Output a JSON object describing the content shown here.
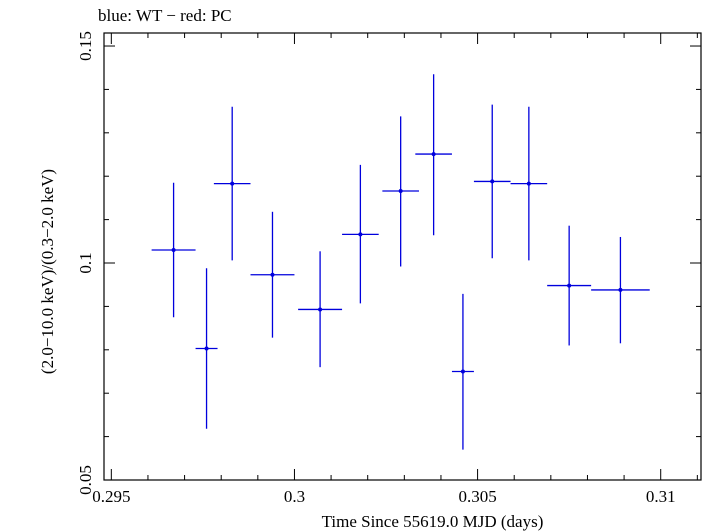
{
  "chart_data": {
    "type": "scatter",
    "title": "blue: WT − red: PC",
    "xlabel": "Time Since 55619.0 MJD (days)",
    "ylabel": "(2.0−10.0 keV)/(0.3−2.0 keV)",
    "xlim": [
      0.2948,
      0.3111
    ],
    "ylim": [
      0.05,
      0.153
    ],
    "x_ticks": [
      {
        "value": 0.295,
        "label": "0.295"
      },
      {
        "value": 0.3,
        "label": "0.3"
      },
      {
        "value": 0.305,
        "label": "0.305"
      },
      {
        "value": 0.31,
        "label": "0.31"
      }
    ],
    "y_ticks": [
      {
        "value": 0.05,
        "label": "0.05"
      },
      {
        "value": 0.1,
        "label": "0.1"
      },
      {
        "value": 0.15,
        "label": "0.15"
      }
    ],
    "grid": false,
    "series": [
      {
        "name": "WT",
        "color": "#0000dd",
        "points": [
          {
            "x": 0.2967,
            "y": 0.103,
            "xerr": 0.0006,
            "ylo": 0.0875,
            "yhi": 0.1185
          },
          {
            "x": 0.2976,
            "y": 0.0803,
            "xerr": 0.0003,
            "ylo": 0.0618,
            "yhi": 0.0988
          },
          {
            "x": 0.2983,
            "y": 0.1183,
            "xerr": 0.0005,
            "ylo": 0.1006,
            "yhi": 0.136
          },
          {
            "x": 0.2994,
            "y": 0.0973,
            "xerr": 0.0006,
            "ylo": 0.0828,
            "yhi": 0.1118
          },
          {
            "x": 0.3007,
            "y": 0.0893,
            "xerr": 0.0006,
            "ylo": 0.076,
            "yhi": 0.1027
          },
          {
            "x": 0.3018,
            "y": 0.1066,
            "xerr": 0.0005,
            "ylo": 0.0907,
            "yhi": 0.1226
          },
          {
            "x": 0.3029,
            "y": 0.1166,
            "xerr": 0.0005,
            "ylo": 0.0992,
            "yhi": 0.1338
          },
          {
            "x": 0.3038,
            "y": 0.1251,
            "xerr": 0.0005,
            "ylo": 0.1064,
            "yhi": 0.1435
          },
          {
            "x": 0.3046,
            "y": 0.075,
            "xerr": 0.0003,
            "ylo": 0.057,
            "yhi": 0.0929
          },
          {
            "x": 0.3054,
            "y": 0.1188,
            "xerr": 0.0005,
            "ylo": 0.1011,
            "yhi": 0.1365
          },
          {
            "x": 0.3064,
            "y": 0.1183,
            "xerr": 0.0005,
            "ylo": 0.1006,
            "yhi": 0.136
          },
          {
            "x": 0.3075,
            "y": 0.0948,
            "xerr": 0.0006,
            "ylo": 0.081,
            "yhi": 0.1086
          },
          {
            "x": 0.3089,
            "y": 0.0938,
            "xerr": 0.0008,
            "ylo": 0.0815,
            "yhi": 0.106
          }
        ]
      }
    ]
  }
}
